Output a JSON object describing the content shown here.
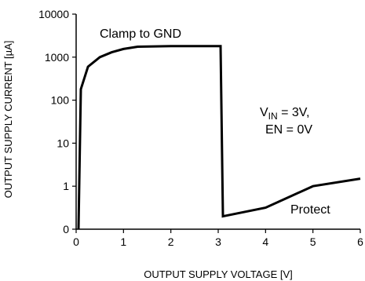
{
  "chart_data": {
    "type": "line",
    "xlabel": "OUTPUT SUPPLY VOLTAGE [V]",
    "ylabel": "OUTPUT SUPPLY CURRENT [µA]",
    "xlim": [
      0,
      6
    ],
    "ylim_scale": "log",
    "y_ticks": [
      {
        "value": 0,
        "label": "0"
      },
      {
        "value": 1,
        "label": "1"
      },
      {
        "value": 10,
        "label": "10"
      },
      {
        "value": 100,
        "label": "100"
      },
      {
        "value": 1000,
        "label": "1000"
      },
      {
        "value": 10000,
        "label": "10000"
      }
    ],
    "x_ticks": [
      0,
      1,
      2,
      3,
      4,
      5,
      6
    ],
    "grid": false,
    "series": [
      {
        "x": [
          0.05,
          0.1,
          0.25,
          0.5,
          0.75,
          1.0,
          1.3,
          2.0,
          3.05,
          3.05,
          3.1,
          4.0,
          5.0,
          6.0
        ],
        "y": [
          0,
          180,
          600,
          1000,
          1300,
          1550,
          1750,
          1800,
          1800,
          1800,
          0.3,
          0.5,
          1.0,
          1.5
        ]
      }
    ],
    "annotations": {
      "clamp": "Clamp to GND",
      "vin_prefix": "V",
      "vin_sub": "IN",
      "vin_suffix": " = 3V,",
      "en": "EN = 0V",
      "protect": "Protect"
    }
  }
}
